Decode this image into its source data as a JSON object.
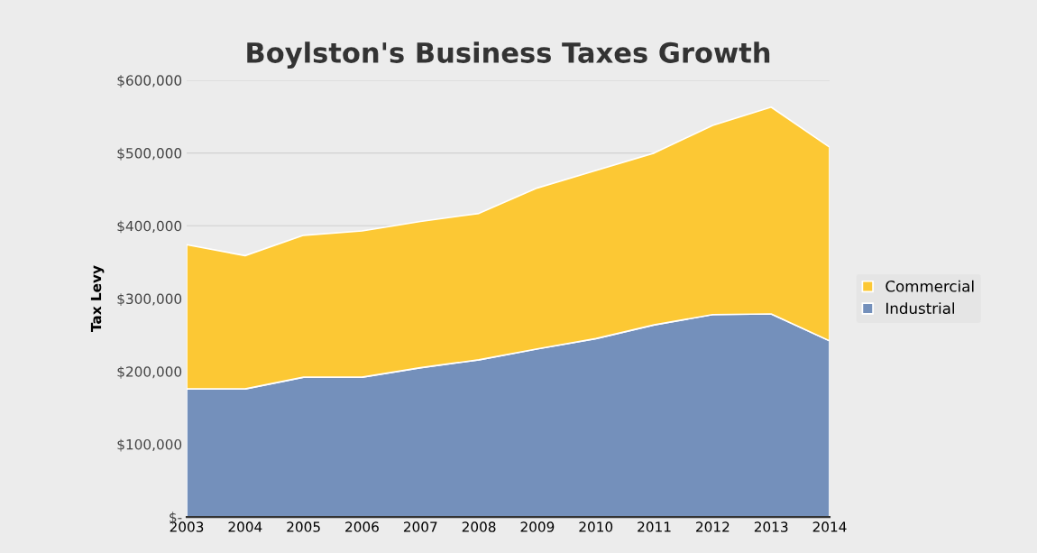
{
  "chart_data": {
    "type": "area",
    "title": "Boylston's Business Taxes Growth",
    "ylabel": "Tax Levy",
    "stacked": true,
    "categories": [
      "2003",
      "2004",
      "2005",
      "2006",
      "2007",
      "2008",
      "2009",
      "2010",
      "2011",
      "2012",
      "2013",
      "2014"
    ],
    "series": [
      {
        "name": "Industrial",
        "color": "#7490bb",
        "values": [
          176000,
          176000,
          192000,
          192000,
          205000,
          216000,
          231000,
          245000,
          264000,
          278000,
          279000,
          242000
        ]
      },
      {
        "name": "Commercial",
        "color": "#fcc834",
        "values": [
          198000,
          183000,
          195000,
          201000,
          201000,
          201000,
          221000,
          231000,
          236000,
          260000,
          284000,
          266000
        ]
      }
    ],
    "ylim": [
      0,
      600000
    ],
    "yticks": [
      {
        "value": 0,
        "label": "$-"
      },
      {
        "value": 100000,
        "label": "$100,000"
      },
      {
        "value": 200000,
        "label": "$200,000"
      },
      {
        "value": 300000,
        "label": "$300,000"
      },
      {
        "value": 400000,
        "label": "$400,000"
      },
      {
        "value": 500000,
        "label": "$500,000"
      },
      {
        "value": 600000,
        "label": "$600,000"
      }
    ],
    "grid": "y",
    "legend": "right"
  }
}
